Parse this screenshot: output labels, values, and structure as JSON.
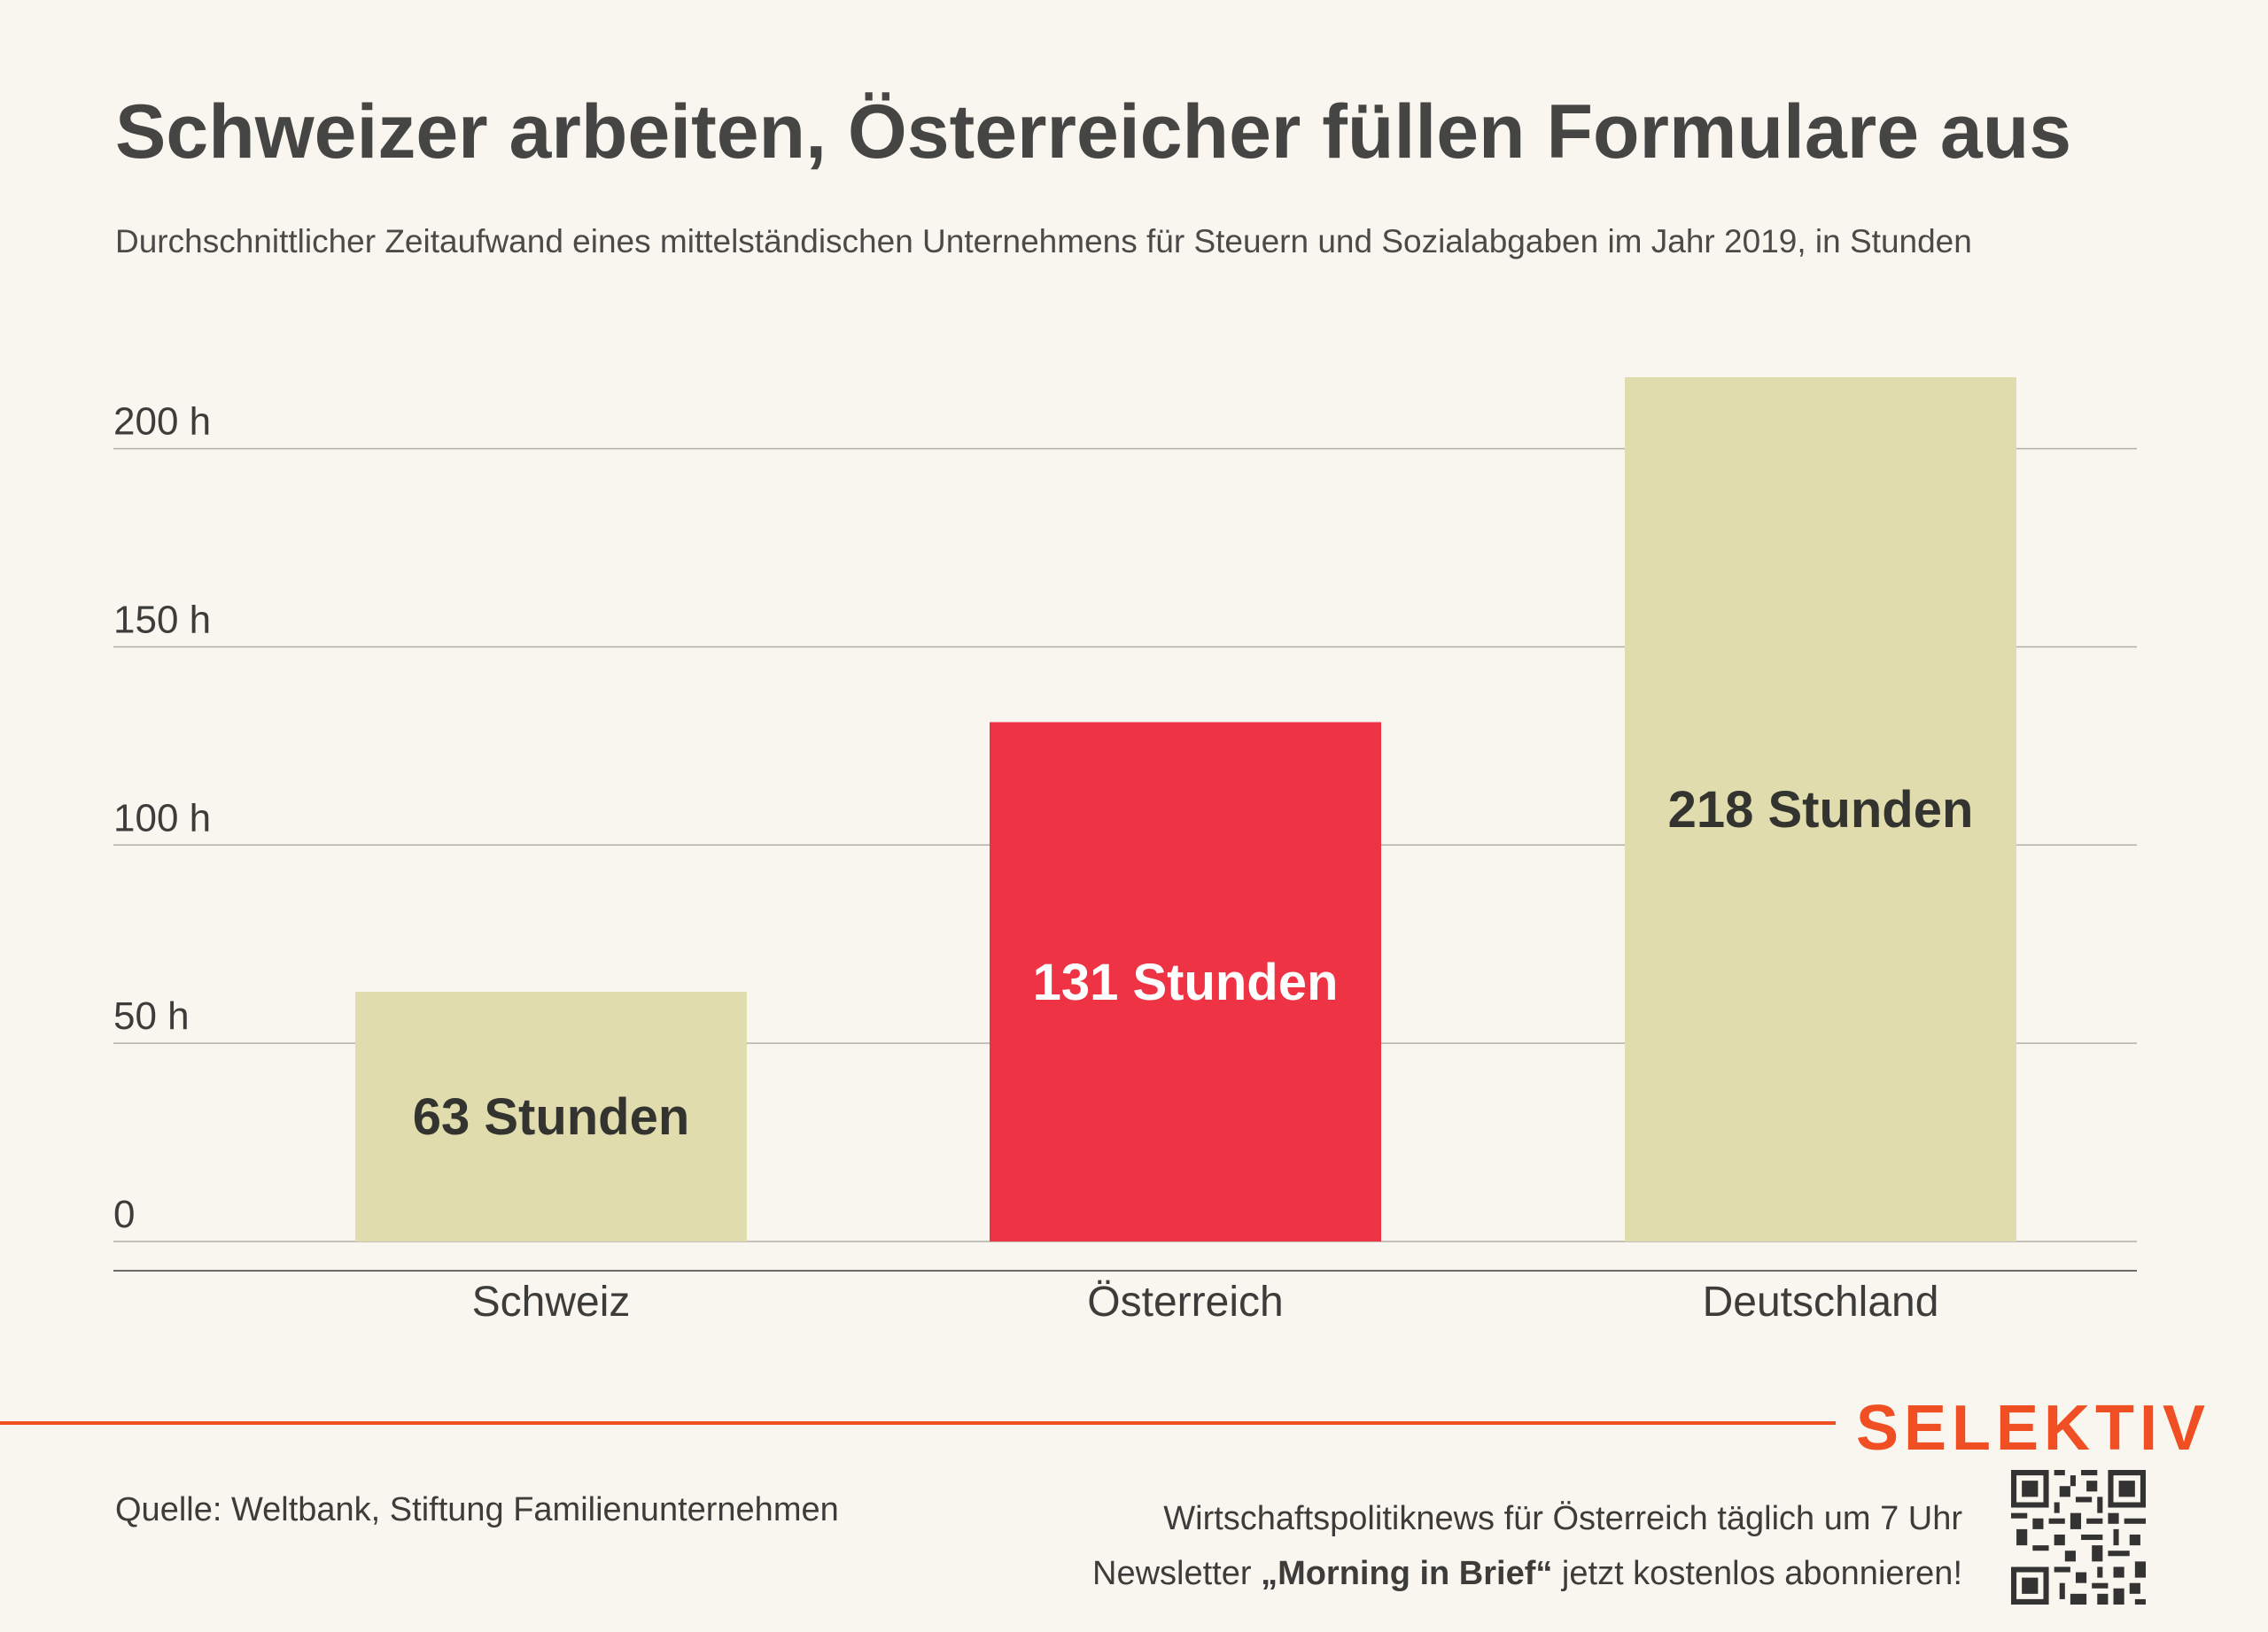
{
  "title": "Schweizer arbeiten, Österreicher füllen Formulare aus",
  "subtitle": "Durchschnittlicher Zeitaufwand eines mittelständischen Unternehmens für Steuern und Sozialabgaben im Jahr 2019, in Stunden",
  "chart_data": {
    "type": "bar",
    "categories": [
      "Schweiz",
      "Österreich",
      "Deutschland"
    ],
    "values": [
      63,
      131,
      218
    ],
    "data_labels": [
      "63 Stunden",
      "131 Stunden",
      "218 Stunden"
    ],
    "bar_colors": [
      "#e0dcad",
      "#ee3344",
      "#e0dcad"
    ],
    "label_colors": [
      "#333330",
      "#ffffff",
      "#333330"
    ],
    "yticks": [
      0,
      50,
      100,
      150,
      200
    ],
    "ytick_labels": [
      "0",
      "50 h",
      "100 h",
      "150 h",
      "200 h"
    ],
    "ylim": [
      0,
      218
    ],
    "grid": true
  },
  "footer": {
    "source": "Quelle: Weltbank, Stiftung Familienunternehmen",
    "logo": "SELEKTIV",
    "promo_line1": "Wirtschaftspolitiknews für Österreich täglich um 7 Uhr",
    "promo_line2_prefix": "Newsletter ",
    "promo_line2_bold": "„Morning in Brief“",
    "promo_line2_suffix": " jetzt kostenlos abonnieren!"
  },
  "colors": {
    "background": "#f8f6ee",
    "accent": "#f04e23",
    "text": "#3c3c3a"
  },
  "icons": [
    "qr-code-icon"
  ]
}
